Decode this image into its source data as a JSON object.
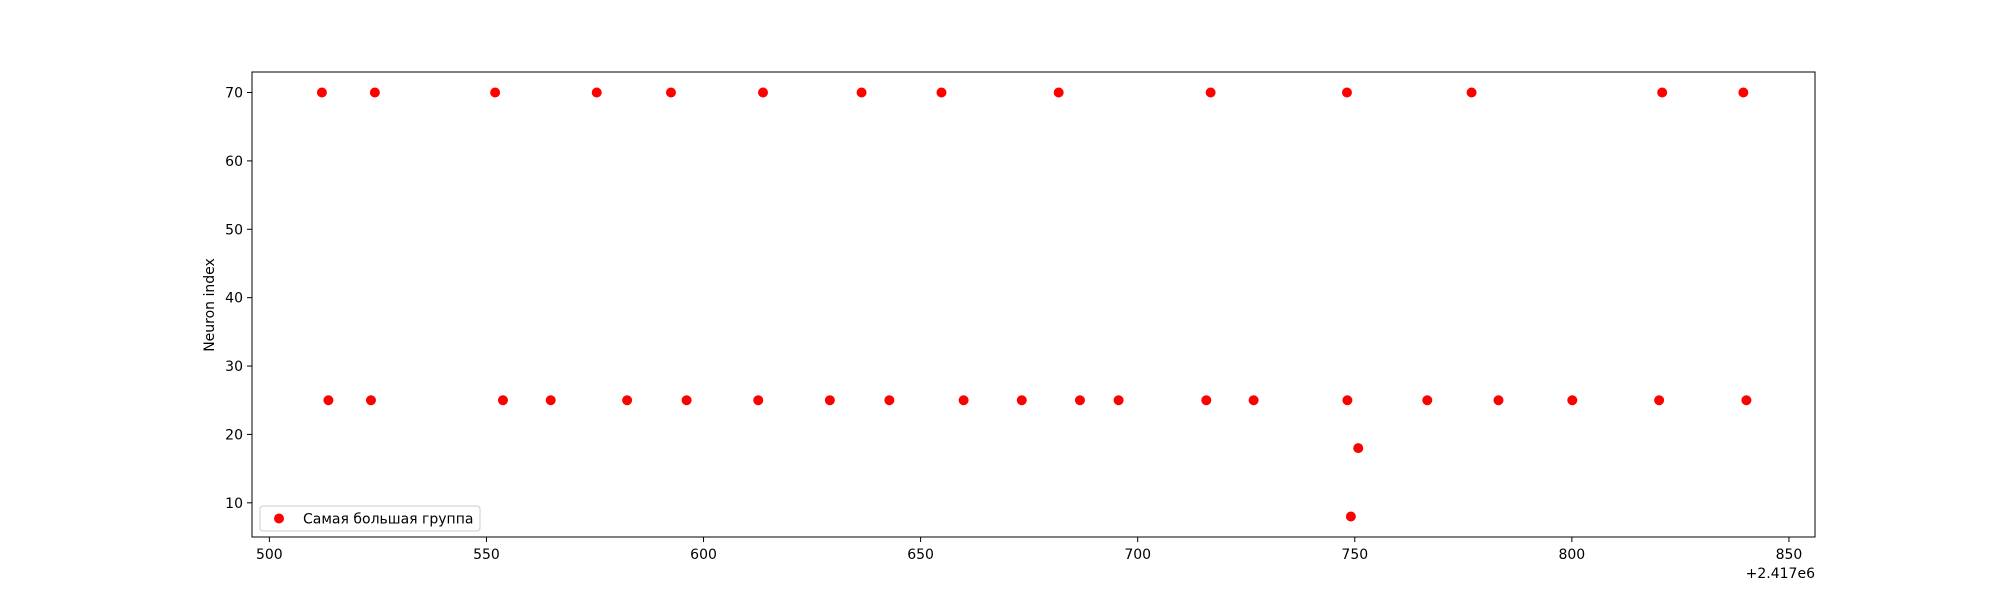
{
  "chart_data": {
    "type": "scatter",
    "title": "",
    "xlabel": "",
    "ylabel": "Neuron index",
    "x_offset_label": "+2.417e6",
    "xlim": [
      496,
      856
    ],
    "ylim": [
      5,
      73
    ],
    "x_ticks": [
      500,
      550,
      600,
      650,
      700,
      750,
      800,
      850
    ],
    "y_ticks": [
      10,
      20,
      30,
      40,
      50,
      60,
      70
    ],
    "x_tick_labels": [
      "500",
      "550",
      "600",
      "650",
      "700",
      "750",
      "800",
      "850"
    ],
    "y_tick_labels": [
      "10",
      "20",
      "30",
      "40",
      "50",
      "60",
      "70"
    ],
    "grid": false,
    "legend_position": "lower-left",
    "color": "#ff0000",
    "series": [
      {
        "name": "Самая большая группа",
        "points": [
          [
            512.1,
            70
          ],
          [
            524.3,
            70
          ],
          [
            552.0,
            70
          ],
          [
            575.4,
            70
          ],
          [
            592.5,
            70
          ],
          [
            613.7,
            70
          ],
          [
            636.4,
            70
          ],
          [
            654.8,
            70
          ],
          [
            681.8,
            70
          ],
          [
            716.8,
            70
          ],
          [
            748.2,
            70
          ],
          [
            776.9,
            70
          ],
          [
            820.8,
            70
          ],
          [
            839.5,
            70
          ],
          [
            513.6,
            25
          ],
          [
            523.4,
            25
          ],
          [
            553.8,
            25
          ],
          [
            564.8,
            25
          ],
          [
            582.4,
            25
          ],
          [
            596.1,
            25
          ],
          [
            612.6,
            25
          ],
          [
            629.1,
            25
          ],
          [
            642.8,
            25
          ],
          [
            659.9,
            25
          ],
          [
            673.3,
            25
          ],
          [
            686.7,
            25
          ],
          [
            695.6,
            25
          ],
          [
            715.8,
            25
          ],
          [
            726.7,
            25
          ],
          [
            748.3,
            25
          ],
          [
            766.7,
            25
          ],
          [
            783.1,
            25
          ],
          [
            800.1,
            25
          ],
          [
            820.1,
            25
          ],
          [
            840.2,
            25
          ],
          [
            750.8,
            18
          ],
          [
            749.1,
            8
          ]
        ]
      }
    ]
  }
}
